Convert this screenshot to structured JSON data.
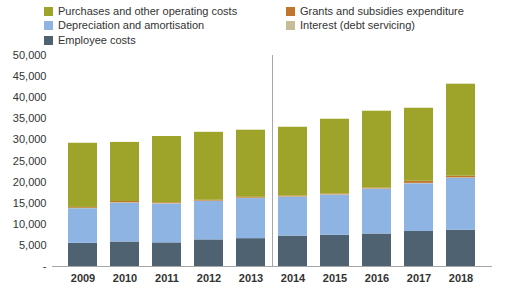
{
  "chart_data": {
    "type": "bar",
    "stacked": true,
    "grid": false,
    "categories": [
      "2009",
      "2010",
      "2011",
      "2012",
      "2013",
      "2014",
      "2015",
      "2016",
      "2017",
      "2018"
    ],
    "series": [
      {
        "name": "Employee costs",
        "color": "#4f6272",
        "values": [
          5500,
          5800,
          5600,
          6300,
          6600,
          7200,
          7400,
          7700,
          8300,
          8600
        ]
      },
      {
        "name": "Depreciation and amortisation",
        "color": "#8eb4e3",
        "values": [
          8200,
          9200,
          9200,
          9100,
          9500,
          9200,
          9500,
          10600,
          11300,
          12300
        ]
      },
      {
        "name": "Interest (debt servicing)",
        "color": "#c4bd97",
        "values": [
          100,
          100,
          100,
          100,
          100,
          100,
          100,
          100,
          100,
          100
        ]
      },
      {
        "name": "Grants and subsidies expenditure",
        "color": "#c0752e",
        "values": [
          200,
          300,
          200,
          200,
          200,
          200,
          200,
          200,
          500,
          400
        ]
      },
      {
        "name": "Purchases and other operating costs",
        "color": "#9ea329",
        "values": [
          15200,
          14000,
          15700,
          16100,
          15900,
          16300,
          17700,
          18200,
          17300,
          21800
        ]
      }
    ],
    "ylim": [
      0,
      50000
    ],
    "yticks": [
      {
        "value": 0,
        "label": "-"
      },
      {
        "value": 5000,
        "label": "5,000"
      },
      {
        "value": 10000,
        "label": "10,000"
      },
      {
        "value": 15000,
        "label": "15,000"
      },
      {
        "value": 20000,
        "label": "20,000"
      },
      {
        "value": 25000,
        "label": "25,000"
      },
      {
        "value": 30000,
        "label": "30,000"
      },
      {
        "value": 35000,
        "label": "35,000"
      },
      {
        "value": 40000,
        "label": "40,000"
      },
      {
        "value": 45000,
        "label": "45,000"
      },
      {
        "value": 50000,
        "label": "50,000"
      }
    ],
    "legend": "top"
  }
}
